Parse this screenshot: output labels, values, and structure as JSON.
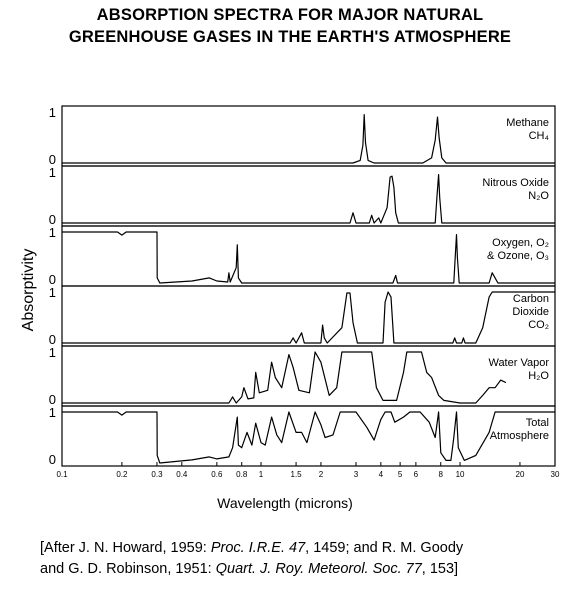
{
  "title_line1": "ABSORPTION SPECTRA FOR MAJOR NATURAL",
  "title_line2": "GREENHOUSE GASES IN THE EARTH'S ATMOSPHERE",
  "citation": {
    "l1_a": "[After J. N. Howard, 1959: ",
    "l1_b": "Proc. I.R.E. 47",
    "l1_c": ", 1459; and R. M. Goody",
    "l2_a": "and G. D. Robinson, 1951: ",
    "l2_b": "Quart. J. Roy. Meteorol. Soc. 77",
    "l2_c": ", 153]"
  },
  "chart_data": {
    "type": "line",
    "xlabel": "Wavelength (microns)",
    "ylabel": "Absorptivity",
    "x_scale": "log",
    "xlim": [
      0.1,
      30
    ],
    "ylim": [
      0,
      1
    ],
    "ytick_labels": [
      "0",
      "1"
    ],
    "xticks": [
      {
        "v": 0.1,
        "label": "0.1"
      },
      {
        "v": 0.2,
        "label": "0.2"
      },
      {
        "v": 0.3,
        "label": "0.3"
      },
      {
        "v": 0.4,
        "label": "0.4"
      },
      {
        "v": 0.6,
        "label": "0.6"
      },
      {
        "v": 0.8,
        "label": "0.8"
      },
      {
        "v": 1,
        "label": "1"
      },
      {
        "v": 1.5,
        "label": "1.5"
      },
      {
        "v": 2,
        "label": "2"
      },
      {
        "v": 3,
        "label": "3"
      },
      {
        "v": 4,
        "label": "4"
      },
      {
        "v": 5,
        "label": "5"
      },
      {
        "v": 6,
        "label": "6"
      },
      {
        "v": 8,
        "label": "8"
      },
      {
        "v": 10,
        "label": "10"
      },
      {
        "v": 20,
        "label": "20"
      },
      {
        "v": 30,
        "label": "30"
      }
    ],
    "panels": [
      {
        "label": [
          "Methane",
          "CH₄"
        ],
        "points": [
          [
            0.1,
            0
          ],
          [
            2.9,
            0
          ],
          [
            3.15,
            0.05
          ],
          [
            3.25,
            0.35
          ],
          [
            3.3,
            0.95
          ],
          [
            3.35,
            0.4
          ],
          [
            3.45,
            0.05
          ],
          [
            3.7,
            0
          ],
          [
            4.2,
            0
          ],
          [
            6.5,
            0
          ],
          [
            7.2,
            0.1
          ],
          [
            7.5,
            0.45
          ],
          [
            7.7,
            0.9
          ],
          [
            7.85,
            0.5
          ],
          [
            8.1,
            0.1
          ],
          [
            8.5,
            0
          ],
          [
            30,
            0
          ]
        ]
      },
      {
        "label": [
          "Nitrous Oxide",
          "N₂O"
        ],
        "points": [
          [
            0.1,
            0
          ],
          [
            2.8,
            0
          ],
          [
            2.9,
            0.2
          ],
          [
            3.0,
            0
          ],
          [
            3.5,
            0
          ],
          [
            3.6,
            0.15
          ],
          [
            3.7,
            0
          ],
          [
            3.9,
            0.1
          ],
          [
            4.0,
            0
          ],
          [
            4.3,
            0.3
          ],
          [
            4.45,
            0.9
          ],
          [
            4.55,
            0.92
          ],
          [
            4.65,
            0.7
          ],
          [
            4.75,
            0.2
          ],
          [
            4.9,
            0
          ],
          [
            7.5,
            0
          ],
          [
            7.65,
            0.5
          ],
          [
            7.8,
            0.95
          ],
          [
            7.9,
            0.5
          ],
          [
            8.1,
            0
          ],
          [
            30,
            0
          ]
        ]
      },
      {
        "label": [
          "Oxygen, O₂",
          "& Ozone, O₃"
        ],
        "points": [
          [
            0.1,
            1
          ],
          [
            0.19,
            1
          ],
          [
            0.2,
            0.94
          ],
          [
            0.21,
            1
          ],
          [
            0.3,
            1
          ],
          [
            0.301,
            0.1
          ],
          [
            0.31,
            0
          ],
          [
            0.45,
            0.04
          ],
          [
            0.55,
            0.1
          ],
          [
            0.6,
            0.04
          ],
          [
            0.68,
            0.02
          ],
          [
            0.69,
            0.2
          ],
          [
            0.7,
            0.02
          ],
          [
            0.75,
            0.3
          ],
          [
            0.76,
            0.75
          ],
          [
            0.77,
            0.1
          ],
          [
            0.8,
            0
          ],
          [
            4.6,
            0
          ],
          [
            4.75,
            0.15
          ],
          [
            4.85,
            0
          ],
          [
            9.3,
            0
          ],
          [
            9.45,
            0.5
          ],
          [
            9.6,
            0.95
          ],
          [
            9.7,
            0.5
          ],
          [
            9.9,
            0
          ],
          [
            14,
            0
          ],
          [
            14.5,
            0.2
          ],
          [
            15,
            0.1
          ],
          [
            15.5,
            0
          ],
          [
            30,
            0
          ]
        ]
      },
      {
        "label": [
          "Carbon",
          "Dioxide",
          "CO₂"
        ],
        "points": [
          [
            0.1,
            0
          ],
          [
            1.4,
            0
          ],
          [
            1.45,
            0.1
          ],
          [
            1.5,
            0
          ],
          [
            1.6,
            0.2
          ],
          [
            1.65,
            0
          ],
          [
            2.0,
            0
          ],
          [
            2.04,
            0.35
          ],
          [
            2.08,
            0.1
          ],
          [
            2.15,
            0
          ],
          [
            2.55,
            0.3
          ],
          [
            2.7,
            0.98
          ],
          [
            2.8,
            0.98
          ],
          [
            2.9,
            0.4
          ],
          [
            3.05,
            0
          ],
          [
            4.1,
            0
          ],
          [
            4.2,
            0.8
          ],
          [
            4.35,
            1
          ],
          [
            4.5,
            0.9
          ],
          [
            4.65,
            0
          ],
          [
            9.2,
            0
          ],
          [
            9.4,
            0.1
          ],
          [
            9.6,
            0
          ],
          [
            10.2,
            0
          ],
          [
            10.4,
            0.1
          ],
          [
            10.6,
            0
          ],
          [
            12,
            0
          ],
          [
            13,
            0.3
          ],
          [
            14,
            0.9
          ],
          [
            14.5,
            1
          ],
          [
            30,
            1
          ]
        ]
      },
      {
        "label": [
          "Water Vapor",
          "H₂O"
        ],
        "points": [
          [
            0.1,
            0
          ],
          [
            0.69,
            0
          ],
          [
            0.72,
            0.12
          ],
          [
            0.75,
            0
          ],
          [
            0.8,
            0.12
          ],
          [
            0.82,
            0.3
          ],
          [
            0.86,
            0.08
          ],
          [
            0.92,
            0.1
          ],
          [
            0.94,
            0.6
          ],
          [
            0.98,
            0.2
          ],
          [
            1.08,
            0.25
          ],
          [
            1.13,
            0.8
          ],
          [
            1.18,
            0.5
          ],
          [
            1.27,
            0.3
          ],
          [
            1.38,
            0.95
          ],
          [
            1.45,
            0.7
          ],
          [
            1.55,
            0.25
          ],
          [
            1.75,
            0.2
          ],
          [
            1.87,
            1
          ],
          [
            2.0,
            0.8
          ],
          [
            2.2,
            0.15
          ],
          [
            2.4,
            0.3
          ],
          [
            2.55,
            1
          ],
          [
            3.6,
            1
          ],
          [
            3.8,
            0.3
          ],
          [
            4.1,
            0.05
          ],
          [
            4.8,
            0.05
          ],
          [
            5.2,
            0.6
          ],
          [
            5.4,
            1
          ],
          [
            6.4,
            1
          ],
          [
            6.8,
            0.6
          ],
          [
            7.2,
            0.5
          ],
          [
            7.8,
            0.15
          ],
          [
            8.3,
            0.05
          ],
          [
            10,
            0
          ],
          [
            12,
            0
          ],
          [
            13,
            0.15
          ],
          [
            14,
            0.3
          ],
          [
            15,
            0.3
          ],
          [
            16,
            0.45
          ],
          [
            17,
            0.4
          ]
        ]
      },
      {
        "label": [
          "Total",
          "Atmosphere"
        ],
        "points": [
          [
            0.1,
            1
          ],
          [
            0.19,
            1
          ],
          [
            0.2,
            0.94
          ],
          [
            0.21,
            1
          ],
          [
            0.3,
            1
          ],
          [
            0.301,
            0.15
          ],
          [
            0.31,
            0
          ],
          [
            0.45,
            0.06
          ],
          [
            0.55,
            0.12
          ],
          [
            0.6,
            0.08
          ],
          [
            0.69,
            0.12
          ],
          [
            0.72,
            0.3
          ],
          [
            0.76,
            0.9
          ],
          [
            0.77,
            0.35
          ],
          [
            0.8,
            0.3
          ],
          [
            0.85,
            0.6
          ],
          [
            0.9,
            0.35
          ],
          [
            0.94,
            0.78
          ],
          [
            1.0,
            0.4
          ],
          [
            1.05,
            0.35
          ],
          [
            1.13,
            0.9
          ],
          [
            1.2,
            0.55
          ],
          [
            1.27,
            0.4
          ],
          [
            1.38,
            1
          ],
          [
            1.5,
            0.6
          ],
          [
            1.6,
            0.6
          ],
          [
            1.7,
            0.4
          ],
          [
            1.87,
            1
          ],
          [
            2.0,
            0.75
          ],
          [
            2.1,
            0.5
          ],
          [
            2.3,
            0.55
          ],
          [
            2.5,
            1
          ],
          [
            3.0,
            1
          ],
          [
            3.4,
            0.7
          ],
          [
            3.7,
            0.45
          ],
          [
            4.0,
            0.85
          ],
          [
            4.2,
            1
          ],
          [
            4.5,
            1
          ],
          [
            4.7,
            0.8
          ],
          [
            5.2,
            0.9
          ],
          [
            5.6,
            1
          ],
          [
            6.3,
            1
          ],
          [
            7.0,
            0.8
          ],
          [
            7.5,
            0.5
          ],
          [
            7.8,
            1
          ],
          [
            8.0,
            0.2
          ],
          [
            8.5,
            0.05
          ],
          [
            9.0,
            0.05
          ],
          [
            9.3,
            0.5
          ],
          [
            9.6,
            1
          ],
          [
            9.8,
            0.3
          ],
          [
            10.5,
            0.05
          ],
          [
            12,
            0.15
          ],
          [
            14,
            0.6
          ],
          [
            15,
            1
          ],
          [
            30,
            1
          ]
        ]
      }
    ]
  }
}
